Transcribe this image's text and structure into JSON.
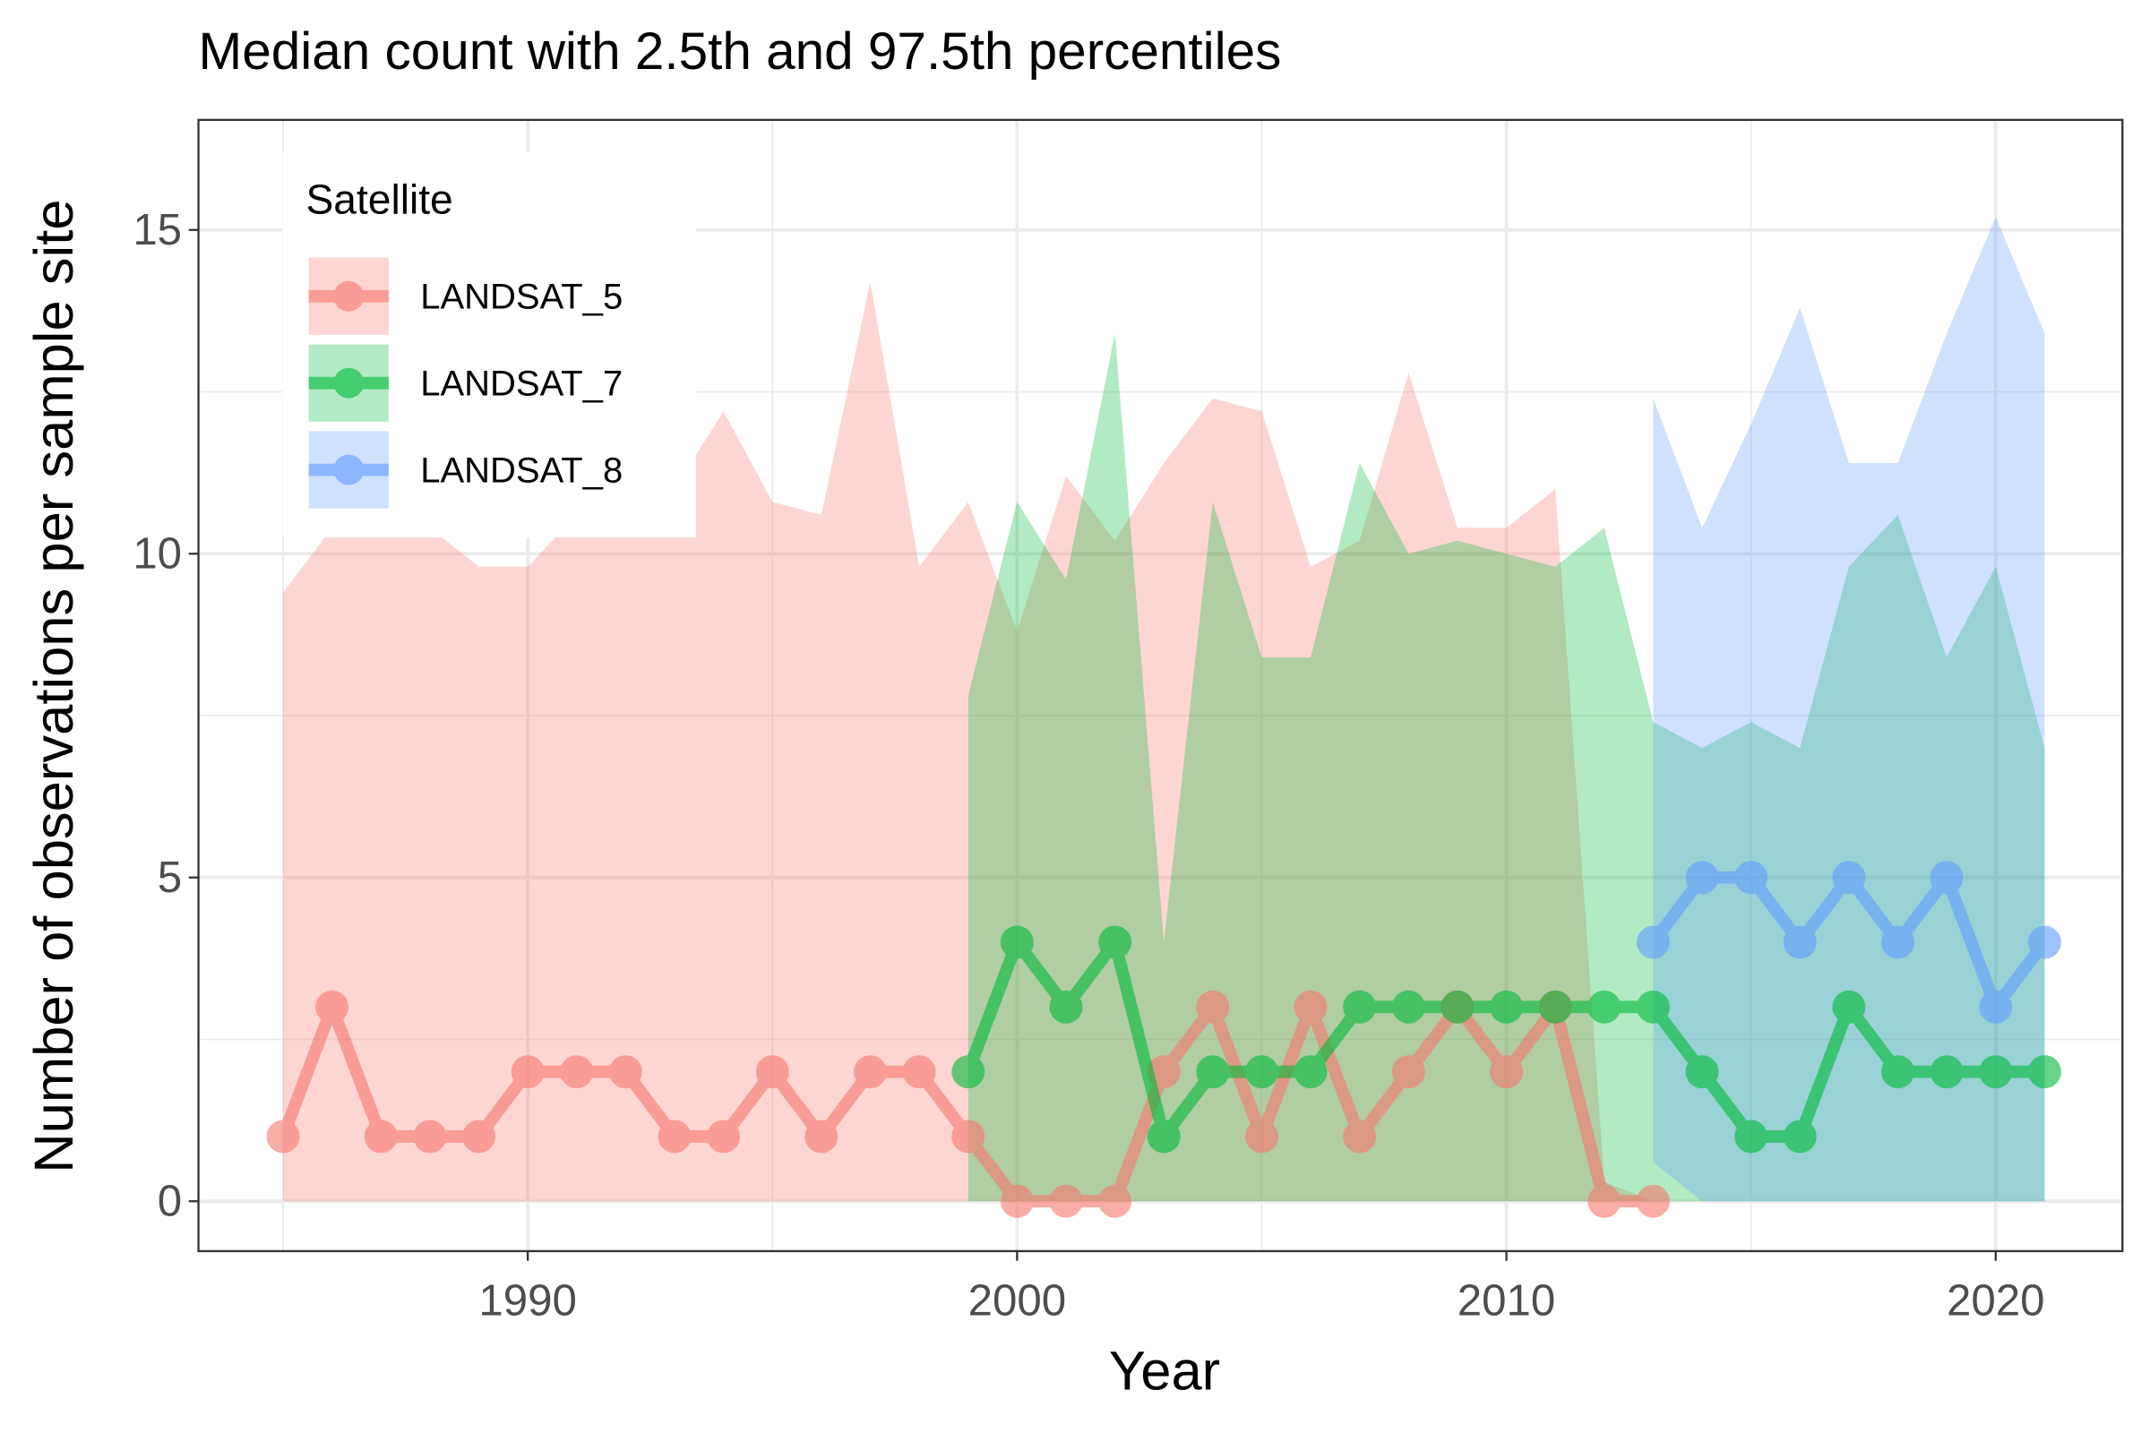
{
  "chart_data": {
    "type": "line_ribbon",
    "title": "Median count with 2.5th and 97.5th percentiles",
    "x_label": "Year",
    "y_label": "Number of observations per sample site",
    "legend_title": "Satellite",
    "legend_position": "top-left",
    "grid": true,
    "xlim": [
      1983.27,
      2022.59
    ],
    "ylim": [
      -0.77,
      16.7
    ],
    "xticks": [
      1990,
      2000,
      2010,
      2020
    ],
    "yticks": [
      0,
      5,
      10,
      15
    ],
    "x_minor_ticks": [
      1985,
      1995,
      2005,
      2015
    ],
    "y_minor_ticks": [
      2.5,
      7.5,
      12.5
    ],
    "series": [
      {
        "name": "LANDSAT_5",
        "color": "#F8766D",
        "x": [
          1985,
          1986,
          1987,
          1988,
          1989,
          1990,
          1991,
          1992,
          1993,
          1994,
          1995,
          1996,
          1997,
          1998,
          1999,
          2000,
          2001,
          2002,
          2003,
          2004,
          2005,
          2006,
          2007,
          2008,
          2009,
          2010,
          2011,
          2012,
          2013
        ],
        "values": [
          1,
          3,
          1,
          1,
          1,
          2,
          2,
          2,
          1,
          1,
          2,
          1,
          2,
          2,
          1,
          0,
          0,
          0,
          2,
          3,
          1,
          3,
          1,
          2,
          3,
          2,
          3,
          0,
          0
        ],
        "upper": [
          9.4,
          10.4,
          10.8,
          10.4,
          9.8,
          9.8,
          10.6,
          11.0,
          11.0,
          12.2,
          10.8,
          10.6,
          14.2,
          9.8,
          10.8,
          8.8,
          11.2,
          10.2,
          11.4,
          12.4,
          12.2,
          9.8,
          10.2,
          12.8,
          10.4,
          10.4,
          11.0,
          0.3,
          0
        ],
        "lower": [
          0,
          0,
          0,
          0,
          0,
          0,
          0,
          0,
          0,
          0,
          0,
          0,
          0,
          0,
          0,
          0,
          0,
          0,
          0,
          0,
          0,
          0,
          0,
          0,
          0,
          0,
          0,
          0,
          0
        ]
      },
      {
        "name": "LANDSAT_7",
        "color": "#00BA38",
        "x": [
          1999,
          2000,
          2001,
          2002,
          2003,
          2004,
          2005,
          2006,
          2007,
          2008,
          2009,
          2010,
          2011,
          2012,
          2013,
          2014,
          2015,
          2016,
          2017,
          2018,
          2019,
          2020,
          2021
        ],
        "values": [
          2,
          4,
          3,
          4,
          1,
          2,
          2,
          2,
          3,
          3,
          3,
          3,
          3,
          3,
          3,
          2,
          1,
          1,
          3,
          2,
          2,
          2,
          2
        ],
        "upper": [
          7.8,
          10.8,
          9.6,
          13.4,
          4.0,
          10.8,
          8.4,
          8.4,
          11.4,
          10.0,
          10.2,
          10.0,
          9.8,
          10.4,
          7.4,
          7.0,
          7.4,
          7.0,
          9.8,
          10.6,
          8.4,
          9.8,
          7.0
        ],
        "lower": [
          0,
          0,
          0,
          0,
          0,
          0,
          0,
          0,
          0,
          0,
          0,
          0,
          0,
          0,
          0,
          0,
          0,
          0,
          0,
          0,
          0,
          0,
          0
        ]
      },
      {
        "name": "LANDSAT_8",
        "color": "#619CFF",
        "x": [
          2013,
          2014,
          2015,
          2016,
          2017,
          2018,
          2019,
          2020,
          2021
        ],
        "values": [
          4,
          5,
          5,
          4,
          5,
          4,
          5,
          3,
          4
        ],
        "upper": [
          12.4,
          10.4,
          12.0,
          13.8,
          11.4,
          11.4,
          13.4,
          15.2,
          13.4
        ],
        "lower": [
          0.6,
          0,
          0,
          0,
          0,
          0,
          0,
          0,
          0
        ]
      }
    ]
  }
}
